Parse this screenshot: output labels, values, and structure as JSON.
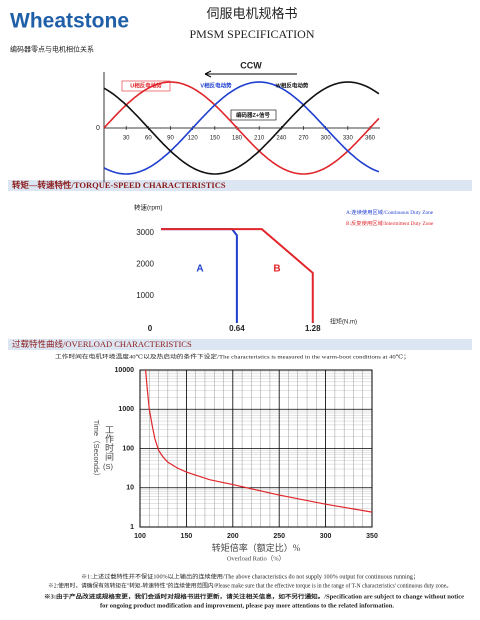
{
  "header": {
    "logo": "Wheatstone",
    "title": "伺服电机规格书",
    "subtitle": "PMSM SPECIFICATION"
  },
  "phase_diagram": {
    "caption": "编码器零点与电机相位关系",
    "direction": "CCW",
    "origin_label": "0",
    "xticks": [
      30,
      60,
      90,
      120,
      150,
      180,
      210,
      240,
      270,
      300,
      330,
      360
    ],
    "curves": [
      {
        "name": "U相反电动势",
        "color": "#e0262b"
      },
      {
        "name": "V相反电动势",
        "color": "#1f3fd0"
      },
      {
        "name": "W相反电动势",
        "color": "#111111"
      }
    ],
    "encoder_label": "编码器Z+信号"
  },
  "torque_speed": {
    "section_title": "转矩—转速特性/TORQUE-SPEED  CHARACTERISTICS",
    "y_label": "转速(rpm)",
    "x_label": "扭矩(N.m)",
    "xlim": [
      0,
      1.4
    ],
    "ylim": [
      0,
      3300
    ],
    "yticks": [
      1000,
      2000,
      3000
    ],
    "xticks": [
      0,
      0.64,
      1.28
    ],
    "series": [
      {
        "name": "A",
        "color": "#1f3fd0",
        "x": [
          0,
          0.6,
          0.64,
          0.64
        ],
        "values": [
          3000,
          3000,
          2800,
          0
        ]
      },
      {
        "name": "B",
        "color": "#e0262b",
        "x": [
          0,
          0.85,
          1.28,
          1.28
        ],
        "values": [
          3000,
          3000,
          1600,
          0
        ]
      }
    ],
    "legend": [
      "A:连续使用区域/Continuous Duty Zone",
      "B:反复使用区域/Intermittent Duty Zone"
    ]
  },
  "overload": {
    "section_title": "过载特性曲线/OVERLOAD  CHARACTERISTICS",
    "note": "工作时间在电机环境温度40℃以及热启动的条件下设定/The characteristics is measured in the warm-boot conditions at 40℃；",
    "y_label_cn": "工作时间",
    "y_label_en": "Time（Seconds）",
    "y_unit": "(S)",
    "x_label_cn": "转矩倍率（额定比）%",
    "x_label_en": "Overload Ratio（%）",
    "xlim": [
      100,
      350
    ],
    "ylim": [
      1,
      10000
    ],
    "log_y": true,
    "xticks": [
      100,
      150,
      200,
      250,
      300,
      350
    ],
    "yticks": [
      1,
      10,
      100,
      1000,
      10000
    ],
    "series": {
      "color": "#e0262b",
      "x": [
        106,
        108,
        110,
        113,
        116,
        120,
        125,
        130,
        140,
        150,
        175,
        200,
        250,
        300,
        350
      ],
      "values": [
        10000,
        3000,
        1000,
        400,
        180,
        90,
        60,
        45,
        32,
        25,
        16,
        12,
        6.5,
        3.8,
        2.4
      ]
    }
  },
  "notes": [
    "※1:上述过载特性并不保证100%以上输出的连续使用/The above characteristics do not supply 100% output for continuous running；",
    "※2:使用时，请确保有效转矩在\"转矩-转速特性\"的连续使用范围内/Please make sure that the effective torque is in the range of T-N characteristics' continuous duty zone。",
    "※3:由于产品改进或规格变更，我们会适时对规格书进行更新，请关注相关信息，如不另行通知。/Specification are subject to change without notice",
    "for ongoing product modification and improvement, please pay more attentions to the related information."
  ]
}
